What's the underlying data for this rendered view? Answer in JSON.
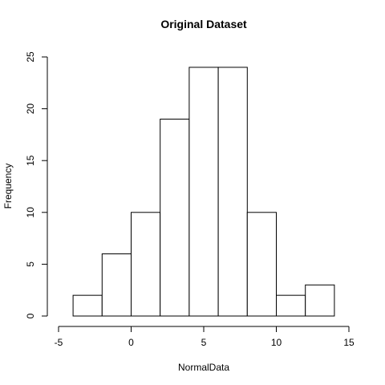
{
  "chart_data": {
    "type": "bar",
    "title": "Original Dataset",
    "xlabel": "NormalData",
    "ylabel": "Frequency",
    "bins": [
      {
        "x0": -4,
        "x1": -2,
        "count": 2
      },
      {
        "x0": -2,
        "x1": 0,
        "count": 6
      },
      {
        "x0": 0,
        "x1": 2,
        "count": 10
      },
      {
        "x0": 2,
        "x1": 4,
        "count": 19
      },
      {
        "x0": 4,
        "x1": 6,
        "count": 24
      },
      {
        "x0": 6,
        "x1": 8,
        "count": 24
      },
      {
        "x0": 8,
        "x1": 10,
        "count": 10
      },
      {
        "x0": 10,
        "x1": 12,
        "count": 2
      },
      {
        "x0": 12,
        "x1": 14,
        "count": 3
      }
    ],
    "xticks": [
      -5,
      0,
      5,
      10,
      15
    ],
    "yticks": [
      0,
      5,
      10,
      15,
      20,
      25
    ],
    "xticks_text": [
      "-5",
      "0",
      "5",
      "10",
      "15"
    ],
    "yticks_text": [
      "0",
      "5",
      "10",
      "15",
      "20",
      "25"
    ],
    "xlim": [
      -5,
      15
    ],
    "ylim": [
      0,
      25
    ],
    "grid": false,
    "legend": "none"
  }
}
